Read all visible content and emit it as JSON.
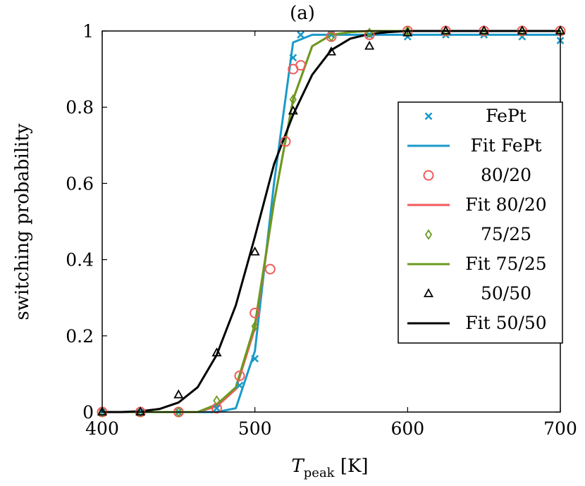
{
  "chart_data": {
    "type": "line",
    "title": "(a)",
    "xlabel": {
      "main": "T",
      "sub": "peak",
      "unit": " [K]"
    },
    "ylabel": "switching probability",
    "xlim": [
      400,
      700
    ],
    "ylim": [
      0,
      1
    ],
    "xticks": [
      400,
      500,
      600,
      700
    ],
    "yticks": [
      0,
      0.2,
      0.4,
      0.6,
      0.8,
      1
    ],
    "ytick_labels": [
      "0",
      "0.2",
      "0.4",
      "0.6",
      "0.8",
      "1"
    ],
    "grid": false,
    "legend_position": "right",
    "series": [
      {
        "name": "FePt",
        "kind": "marker",
        "marker": "cross",
        "color": "#1a9ac9",
        "x": [
          400,
          425,
          450,
          475,
          490,
          500,
          525,
          530,
          550,
          575,
          600,
          625,
          650,
          675,
          700
        ],
        "y": [
          0.0,
          0.0,
          0.0,
          0.01,
          0.07,
          0.14,
          0.93,
          0.99,
          0.99,
          0.99,
          0.985,
          0.99,
          0.99,
          0.985,
          0.975
        ]
      },
      {
        "name": "Fit FePt",
        "kind": "line",
        "color": "#1a9ac9",
        "x": [
          400,
          425,
          450,
          475,
          487.5,
          500,
          512.5,
          525,
          537.5,
          550,
          575,
          600,
          625,
          650,
          675,
          700
        ],
        "y": [
          0.0,
          0.0,
          0.0,
          0.0,
          0.01,
          0.16,
          0.6,
          0.97,
          0.99,
          0.99,
          0.99,
          0.99,
          0.99,
          0.99,
          0.99,
          0.99
        ]
      },
      {
        "name": "80/20",
        "kind": "marker",
        "marker": "circle",
        "color": "#f25a5a",
        "x": [
          400,
          425,
          450,
          475,
          490,
          500,
          510,
          520,
          525,
          530,
          550,
          575,
          600,
          625,
          650,
          675,
          700
        ],
        "y": [
          0.0,
          0.0,
          0.0,
          0.01,
          0.095,
          0.26,
          0.375,
          0.71,
          0.9,
          0.91,
          0.985,
          0.99,
          1.0,
          1.0,
          1.0,
          1.0,
          1.0
        ]
      },
      {
        "name": "Fit 80/20",
        "kind": "line",
        "color": "#f25a5a",
        "x": [
          400,
          425,
          450,
          462.5,
          475,
          487.5,
          500,
          512.5,
          525,
          537.5,
          550,
          562.5,
          575,
          600,
          625,
          650,
          675,
          700
        ],
        "y": [
          0.0,
          0.0,
          0.0,
          0.0,
          0.015,
          0.06,
          0.22,
          0.55,
          0.82,
          0.96,
          0.99,
          0.997,
          1.0,
          1.0,
          1.0,
          1.0,
          1.0,
          1.0
        ]
      },
      {
        "name": "75/25",
        "kind": "marker",
        "marker": "diamond",
        "color": "#6a9a1f",
        "x": [
          400,
          425,
          450,
          475,
          500,
          525,
          550,
          575,
          600,
          625,
          650,
          675,
          700
        ],
        "y": [
          0.0,
          0.0,
          0.0,
          0.03,
          0.225,
          0.82,
          0.985,
          0.995,
          1.0,
          1.0,
          1.0,
          1.0,
          1.0
        ]
      },
      {
        "name": "Fit 75/25",
        "kind": "line",
        "color": "#6a9a1f",
        "x": [
          400,
          425,
          450,
          462.5,
          475,
          487.5,
          500,
          512.5,
          525,
          537.5,
          550,
          562.5,
          575,
          600,
          625,
          650,
          675,
          700
        ],
        "y": [
          0.0,
          0.0,
          0.0,
          0.0,
          0.02,
          0.065,
          0.23,
          0.55,
          0.82,
          0.96,
          0.99,
          0.997,
          1.0,
          1.0,
          1.0,
          1.0,
          1.0,
          1.0
        ]
      },
      {
        "name": "50/50",
        "kind": "marker",
        "marker": "triangle",
        "color": "#000000",
        "x": [
          400,
          425,
          450,
          475,
          500,
          525,
          550,
          575,
          600,
          625,
          650,
          675,
          700
        ],
        "y": [
          0.0,
          0.0,
          0.045,
          0.155,
          0.42,
          0.79,
          0.945,
          0.96,
          0.995,
          1.0,
          1.0,
          1.0,
          1.0
        ]
      },
      {
        "name": "Fit 50/50",
        "kind": "line",
        "color": "#000000",
        "x": [
          400,
          412.5,
          425,
          437.5,
          450,
          462.5,
          475,
          487.5,
          500,
          512.5,
          525,
          537.5,
          550,
          562.5,
          575,
          587.5,
          600,
          625,
          650,
          675,
          700
        ],
        "y": [
          0.0,
          0.0,
          0.002,
          0.008,
          0.025,
          0.065,
          0.15,
          0.28,
          0.46,
          0.65,
          0.78,
          0.885,
          0.95,
          0.98,
          0.992,
          0.997,
          1.0,
          1.0,
          1.0,
          1.0,
          1.0
        ]
      }
    ]
  }
}
